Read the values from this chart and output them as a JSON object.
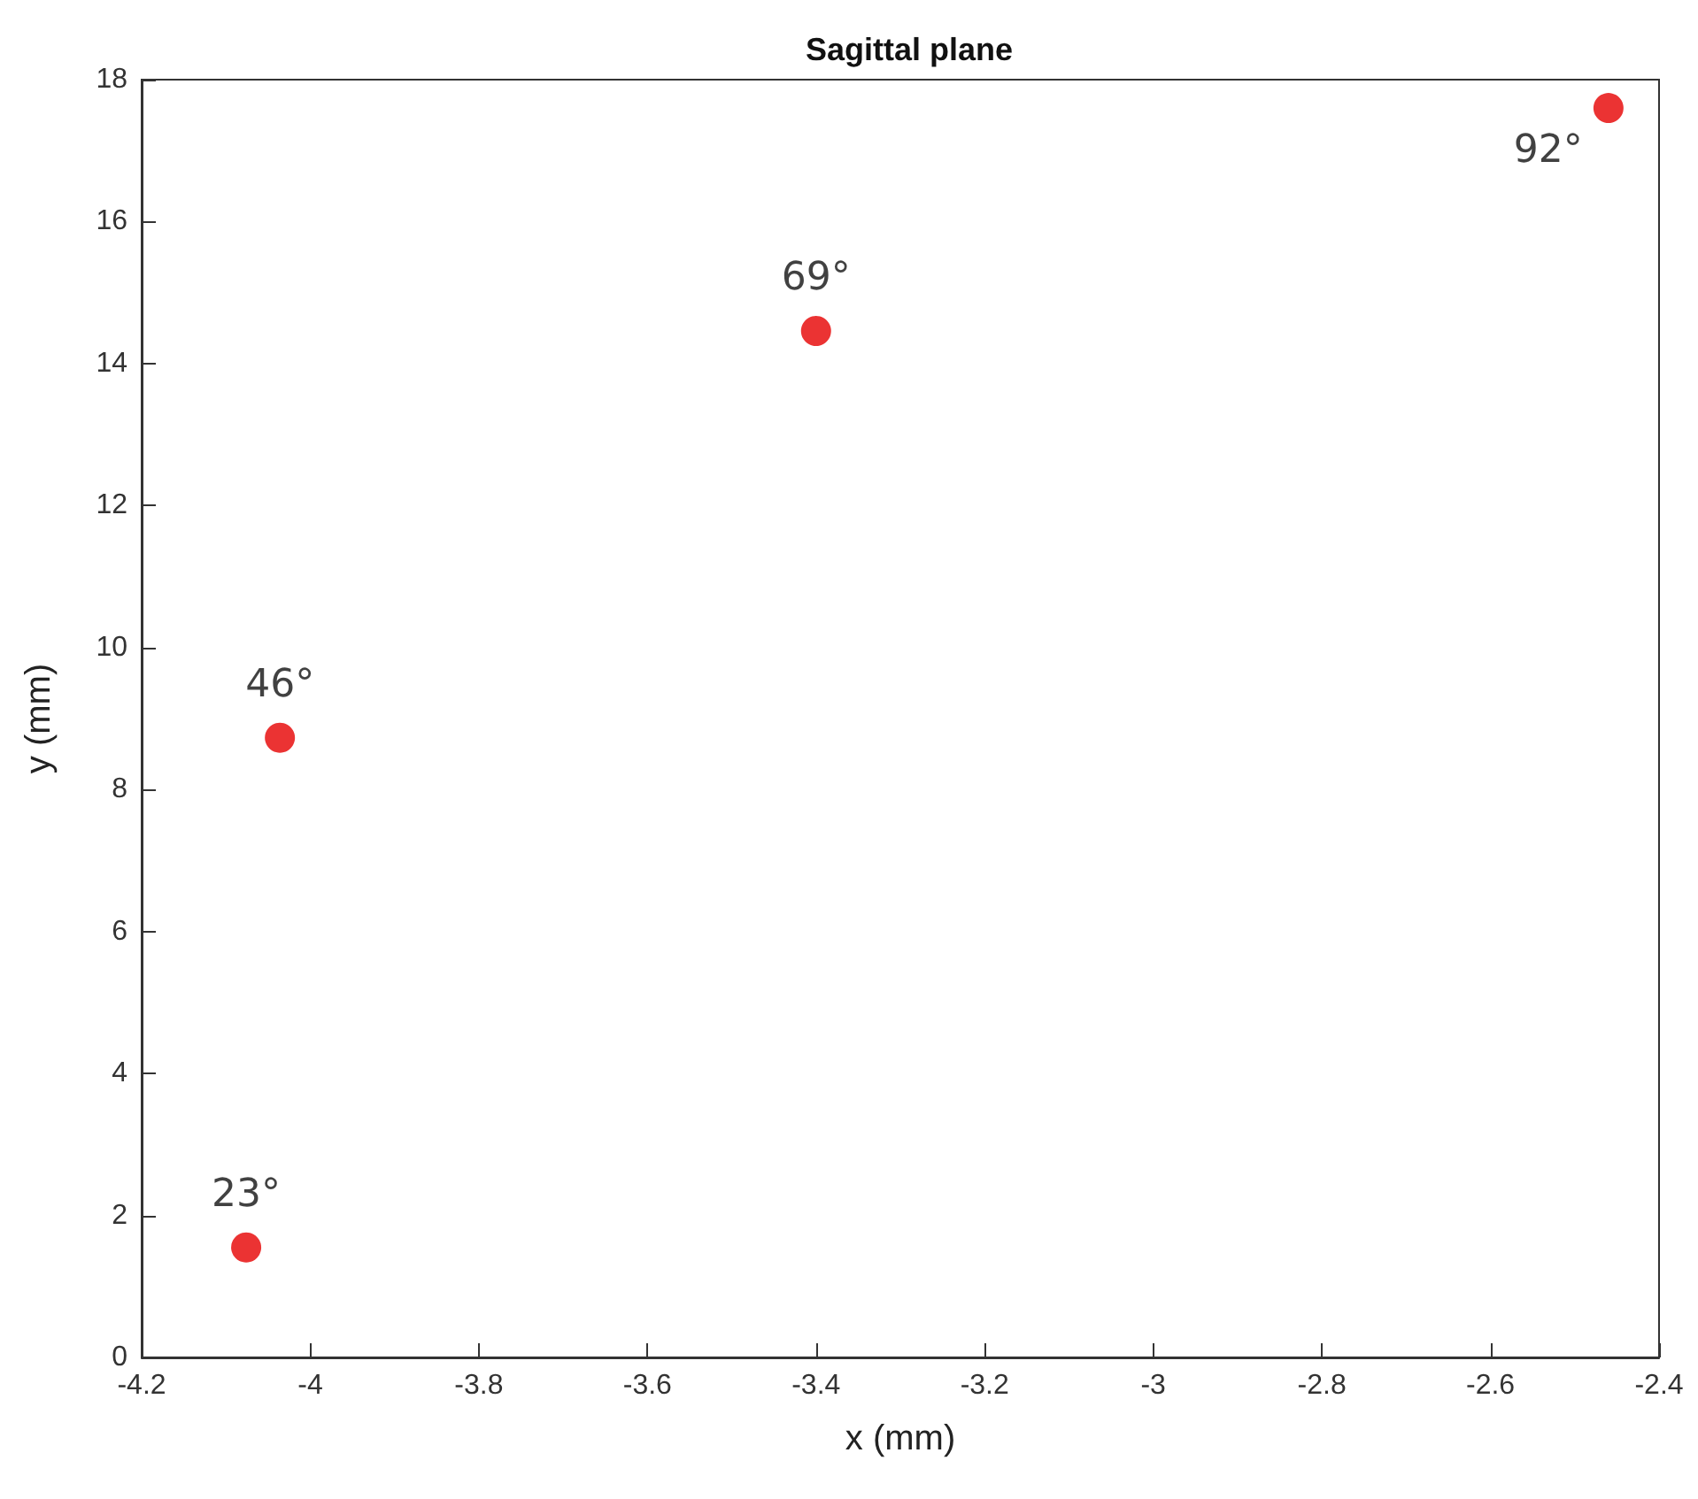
{
  "chart_data": {
    "type": "scatter",
    "title": "Sagittal plane",
    "xlabel": "x (mm)",
    "ylabel": "y (mm)",
    "x": [
      -4.076,
      -4.036,
      -3.4,
      -2.46
    ],
    "values": [
      1.55,
      8.73,
      14.46,
      17.6
    ],
    "color": "#e60000",
    "marker": "circle",
    "grid": false,
    "xlim": [
      -4.2,
      -2.4
    ],
    "xticks": [
      -4.2,
      -4,
      -3.8,
      -3.6,
      -3.4,
      -3.2,
      -3,
      -2.8,
      -2.6,
      -2.4
    ],
    "ylim": [
      0,
      18
    ],
    "yticks": [
      0,
      2,
      4,
      6,
      8,
      10,
      12,
      14,
      16,
      18
    ],
    "annotations": [
      {
        "text": "23°",
        "x": -4.076,
        "y": 1.55
      },
      {
        "text": "46°",
        "x": -4.036,
        "y": 8.73
      },
      {
        "text": "69°",
        "x": -3.4,
        "y": 14.46
      },
      {
        "text": "92°",
        "x": -2.46,
        "y": 17.6
      }
    ]
  }
}
